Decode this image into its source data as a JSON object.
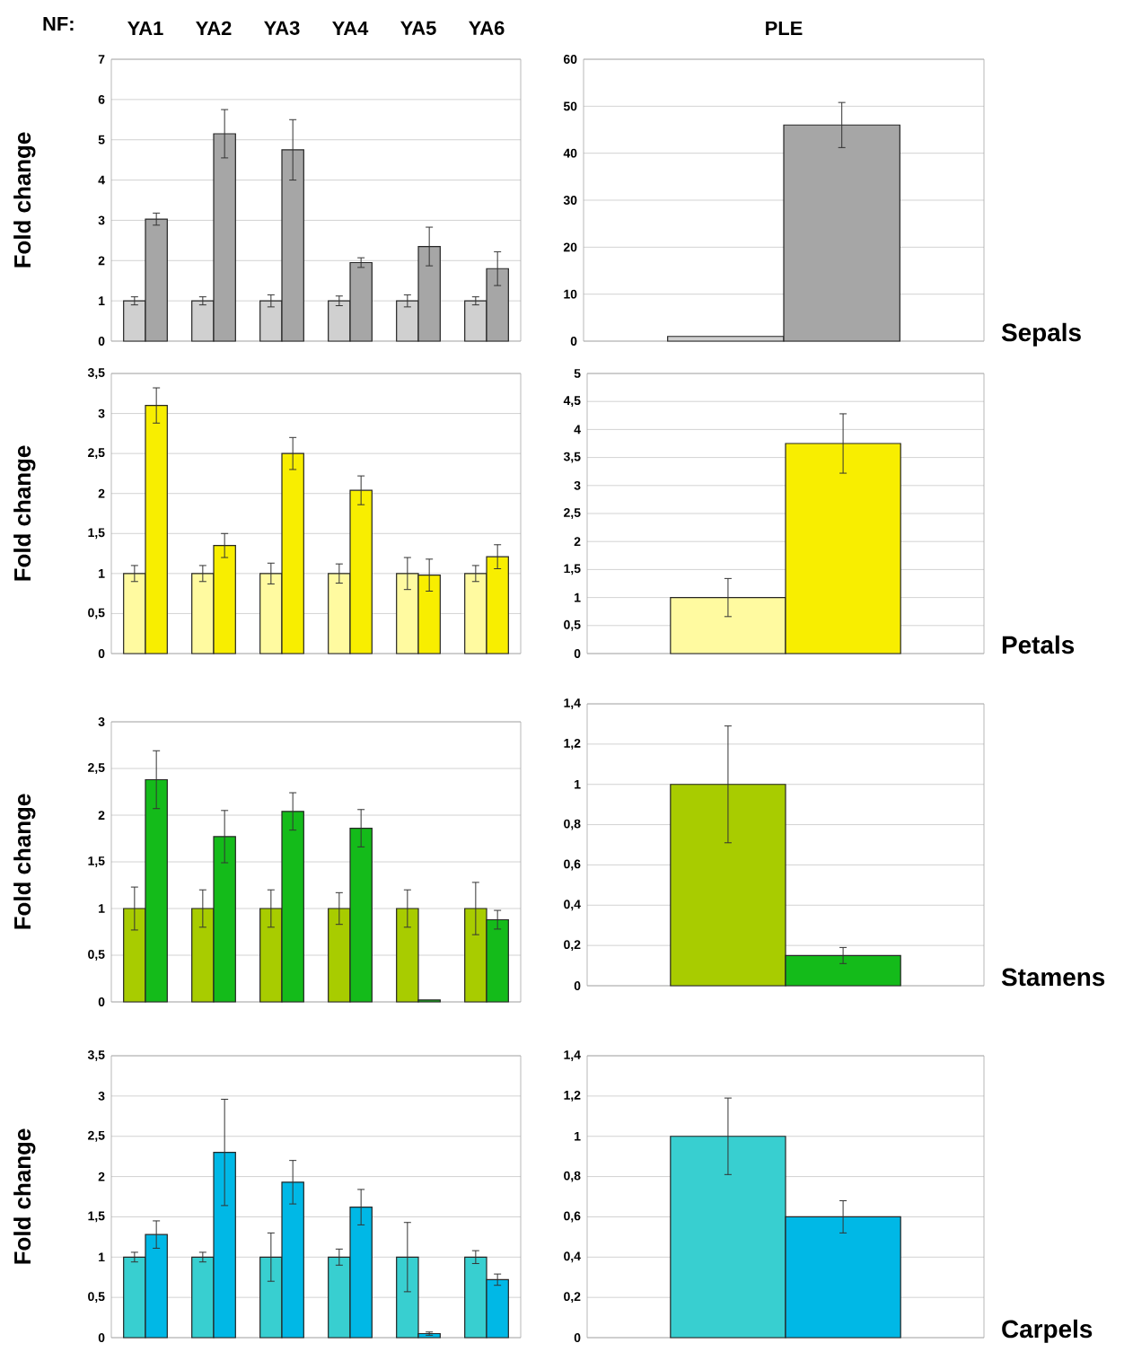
{
  "chart_data": [
    {
      "type": "bar",
      "categories": [
        "YA1",
        "YA2",
        "YA3",
        "YA4",
        "YA5",
        "YA6"
      ],
      "ylabel": "Fold change",
      "annotations": [
        "NF:"
      ],
      "grid": "y",
      "ylim": [
        0,
        7
      ],
      "yticks": [
        0,
        1,
        2,
        3,
        4,
        5,
        6,
        7
      ],
      "series": [
        {
          "color": "#d0d0d0",
          "values": [
            1,
            1,
            1,
            1,
            1,
            1
          ],
          "errors": [
            0.1,
            0.1,
            0.15,
            0.12,
            0.15,
            0.1
          ]
        },
        {
          "color": "#a6a6a6",
          "values": [
            3.03,
            5.15,
            4.75,
            1.95,
            2.35,
            1.8
          ],
          "errors": [
            0.15,
            0.6,
            0.75,
            0.12,
            0.48,
            0.42
          ]
        }
      ]
    },
    {
      "type": "bar",
      "categories": [
        "PLE"
      ],
      "annotations": [
        "Sepals"
      ],
      "grid": "y",
      "ylim": [
        0,
        60
      ],
      "yticks": [
        0,
        10,
        20,
        30,
        40,
        50,
        60
      ],
      "series": [
        {
          "color": "#d0d0d0",
          "values": [
            1
          ],
          "errors": [
            null
          ]
        },
        {
          "color": "#a6a6a6",
          "values": [
            46
          ],
          "errors": [
            4.8
          ]
        }
      ]
    },
    {
      "type": "bar",
      "categories": [
        null,
        null,
        null,
        null,
        null,
        null
      ],
      "tick_labels": "y",
      "ylabel": "Fold change",
      "grid": "y",
      "ylim": [
        0,
        3.5
      ],
      "yticks": [
        0,
        {
          "value": 0.5,
          "label": "0,5"
        },
        1,
        {
          "value": 1.5,
          "label": "1,5"
        },
        2,
        {
          "value": 2.5,
          "label": "2,5"
        },
        3,
        {
          "value": 3.5,
          "label": "3,5"
        }
      ],
      "series": [
        {
          "color": "#fffaa0",
          "values": [
            1,
            1,
            1,
            1,
            1,
            1
          ],
          "errors": [
            0.1,
            0.1,
            0.13,
            0.12,
            0.2,
            0.1
          ]
        },
        {
          "color": "#f8ee00",
          "values": [
            3.1,
            1.35,
            2.5,
            2.04,
            0.98,
            1.21
          ],
          "errors": [
            0.22,
            0.15,
            0.2,
            0.18,
            0.2,
            0.15
          ]
        }
      ]
    },
    {
      "type": "bar",
      "categories": [
        null
      ],
      "tick_labels": "y",
      "annotations": [
        "Petals"
      ],
      "grid": "y",
      "ylim": [
        0,
        5
      ],
      "yticks": [
        0,
        {
          "value": 0.5,
          "label": "0,5"
        },
        1,
        {
          "value": 1.5,
          "label": "1,5"
        },
        2,
        {
          "value": 2.5,
          "label": "2,5"
        },
        3,
        {
          "value": 3.5,
          "label": "3,5"
        },
        4,
        {
          "value": 4.5,
          "label": "4,5"
        },
        5
      ],
      "series": [
        {
          "color": "#fffaa0",
          "values": [
            1
          ],
          "errors": [
            0.34
          ]
        },
        {
          "color": "#f8ee00",
          "values": [
            3.75
          ],
          "errors": [
            0.53
          ]
        }
      ]
    },
    {
      "type": "bar",
      "categories": [
        null,
        null,
        null,
        null,
        null,
        null
      ],
      "tick_labels": "y",
      "ylabel": "Fold change",
      "grid": "y",
      "ylim": [
        0,
        3
      ],
      "yticks": [
        0,
        {
          "value": 0.5,
          "label": "0,5"
        },
        1,
        {
          "value": 1.5,
          "label": "1,5"
        },
        2,
        {
          "value": 2.5,
          "label": "2,5"
        },
        3
      ],
      "series": [
        {
          "color": "#a8cc00",
          "values": [
            1,
            1,
            1,
            1,
            1,
            1
          ],
          "errors": [
            0.23,
            0.2,
            0.2,
            0.17,
            0.2,
            0.28
          ]
        },
        {
          "color": "#14bb1a",
          "values": [
            2.38,
            1.77,
            2.04,
            1.86,
            0.02,
            0.88
          ],
          "errors": [
            0.31,
            0.28,
            0.2,
            0.2,
            null,
            0.1
          ]
        }
      ]
    },
    {
      "type": "bar",
      "categories": [
        null
      ],
      "tick_labels": "y",
      "annotations": [
        "Stamens"
      ],
      "grid": "y",
      "ylim": [
        0,
        1.4
      ],
      "yticks": [
        0,
        {
          "value": 0.2,
          "label": "0,2"
        },
        {
          "value": 0.4,
          "label": "0,4"
        },
        {
          "value": 0.6,
          "label": "0,6"
        },
        {
          "value": 0.8,
          "label": "0,8"
        },
        1,
        {
          "value": 1.2,
          "label": "1,2"
        },
        {
          "value": 1.4,
          "label": "1,4"
        }
      ],
      "series": [
        {
          "color": "#a8cc00",
          "values": [
            1
          ],
          "errors": [
            0.29
          ]
        },
        {
          "color": "#14bb1a",
          "values": [
            0.15
          ],
          "errors": [
            0.04
          ]
        }
      ]
    },
    {
      "type": "bar",
      "categories": [
        null,
        null,
        null,
        null,
        null,
        null
      ],
      "tick_labels": "y",
      "ylabel": "Fold change",
      "grid": "y",
      "ylim": [
        0,
        3.5
      ],
      "yticks": [
        0,
        {
          "value": 0.5,
          "label": "0,5"
        },
        1,
        {
          "value": 1.5,
          "label": "1,5"
        },
        2,
        {
          "value": 2.5,
          "label": "2,5"
        },
        3,
        {
          "value": 3.5,
          "label": "3,5"
        }
      ],
      "series": [
        {
          "color": "#38cfd0",
          "values": [
            1,
            1,
            1,
            1,
            1,
            1
          ],
          "errors": [
            0.06,
            0.06,
            0.3,
            0.1,
            0.43,
            0.08
          ]
        },
        {
          "color": "#00b8e6",
          "values": [
            1.28,
            2.3,
            1.93,
            1.62,
            0.05,
            0.72
          ],
          "errors": [
            0.17,
            0.66,
            0.27,
            0.22,
            0.02,
            0.07
          ]
        }
      ]
    },
    {
      "type": "bar",
      "categories": [
        null
      ],
      "tick_labels": "y",
      "annotations": [
        "Carpels"
      ],
      "grid": "y",
      "ylim": [
        0,
        1.4
      ],
      "yticks": [
        0,
        {
          "value": 0.2,
          "label": "0,2"
        },
        {
          "value": 0.4,
          "label": "0,4"
        },
        {
          "value": 0.6,
          "label": "0,6"
        },
        {
          "value": 0.8,
          "label": "0,8"
        },
        1,
        {
          "value": 1.2,
          "label": "1,2"
        },
        {
          "value": 1.4,
          "label": "1,4"
        }
      ],
      "series": [
        {
          "color": "#38cfd0",
          "values": [
            1
          ],
          "errors": [
            0.19
          ]
        },
        {
          "color": "#00b8e6",
          "values": [
            0.6
          ],
          "errors": [
            0.08
          ]
        }
      ]
    }
  ]
}
